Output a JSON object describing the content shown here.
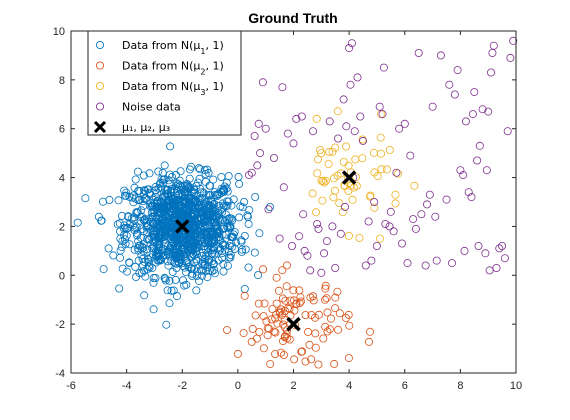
{
  "chart_data": {
    "type": "scatter",
    "title": "Ground Truth",
    "xlabel": "",
    "ylabel": "",
    "xlim": [
      -6,
      10
    ],
    "ylim": [
      -4,
      10
    ],
    "xticks": [
      "-6",
      "-4",
      "-2",
      "0",
      "2",
      "4",
      "6",
      "8",
      "10"
    ],
    "yticks": [
      "-4",
      "-2",
      "0",
      "2",
      "4",
      "6",
      "8",
      "10"
    ],
    "grid": false,
    "legend_position": "top-left",
    "legend": [
      {
        "text": "Data from N(μ",
        "sub": "1",
        "tail": ", 1)",
        "color": "#0072bd",
        "marker": "circle"
      },
      {
        "text": "Data from N(μ",
        "sub": "2",
        "tail": ", 1)",
        "color": "#d95319",
        "marker": "circle"
      },
      {
        "text": "Data from N(μ",
        "sub": "3",
        "tail": ", 1)",
        "color": "#edb120",
        "marker": "circle"
      },
      {
        "text": "Noise data",
        "sub": "",
        "tail": "",
        "color": "#7e2f8e",
        "marker": "circle"
      },
      {
        "text": "μ₁, μ₂, μ₃",
        "sub": "",
        "tail": "",
        "color": "#000000",
        "marker": "x"
      }
    ],
    "series": [
      {
        "name": "Data from N(μ1, 1)",
        "color": "#0072bd",
        "center": [
          -2,
          2
        ],
        "n": 1100
      },
      {
        "name": "Data from N(μ2, 1)",
        "color": "#d95319",
        "center": [
          2,
          -2
        ],
        "n": 110
      },
      {
        "name": "Data from N(μ3, 1)",
        "color": "#edb120",
        "center": [
          4,
          4
        ],
        "n": 60
      },
      {
        "name": "Noise data",
        "color": "#7e2f8e",
        "x": [
          4.0,
          4.1,
          4.3,
          3.8,
          3.6,
          4.4,
          5.1,
          5.2,
          3.3,
          2.0,
          2.7,
          2.3,
          2.1,
          3.9,
          4.2,
          4.5,
          5.8,
          6.0,
          5.7,
          6.2,
          6.5,
          7.0,
          7.8,
          8.5,
          9.0,
          9.1,
          9.2,
          9.8,
          9.7,
          8.2,
          8.0,
          7.5,
          6.8,
          5.5,
          5.0,
          4.8,
          4.6,
          3.5,
          3.0,
          2.5,
          2.2,
          1.5,
          1.3,
          0.8,
          0.7,
          0.5,
          0.4,
          0.9,
          1.0,
          1.6,
          1.8,
          2.4,
          2.6,
          2.9,
          3.1,
          3.2,
          3.4,
          3.7,
          4.7,
          4.9,
          5.3,
          5.6,
          5.9,
          6.1,
          6.3,
          6.6,
          6.9,
          7.1,
          7.3,
          7.6,
          7.9,
          8.1,
          8.3,
          8.4,
          8.6,
          8.7,
          8.8,
          8.9,
          9.3,
          9.4,
          9.5,
          9.6,
          9.9,
          8.45,
          8.65,
          9.05,
          7.15,
          6.4,
          5.45,
          4.15,
          3.85,
          2.85,
          2.35,
          1.95,
          1.65,
          0.6,
          0.75,
          1.1,
          4.05,
          7.7,
          8.15,
          9.15,
          8.95,
          6.75,
          5.25
        ],
        "y": [
          9.3,
          9.5,
          8.1,
          7.2,
          5.6,
          6.5,
          6.9,
          6.6,
          6.3,
          5.4,
          5.9,
          6.5,
          6.4,
          6.1,
          5.9,
          5.5,
          6.0,
          6.2,
          4.2,
          4.9,
          9.1,
          6.9,
          7.4,
          7.5,
          6.7,
          8.3,
          9.4,
          8.9,
          5.9,
          6.3,
          4.3,
          3.1,
          2.9,
          2.6,
          1.2,
          0.6,
          0.4,
          0.3,
          0.1,
          0.8,
          1.6,
          1.5,
          4.8,
          5.0,
          4.5,
          4.2,
          4.1,
          7.9,
          6.0,
          7.7,
          5.8,
          1.0,
          0.2,
          1.9,
          0.9,
          1.4,
          2.0,
          1.7,
          2.2,
          3.0,
          2.1,
          1.8,
          1.3,
          0.5,
          2.3,
          2.5,
          3.3,
          2.4,
          9.0,
          7.8,
          8.4,
          4.1,
          3.4,
          3.2,
          4.7,
          5.3,
          6.8,
          0.9,
          0.3,
          1.1,
          1.2,
          0.7,
          9.6,
          6.6,
          1.2,
          0.2,
          0.6,
          1.9,
          2.0,
          4.0,
          2.8,
          2.1,
          2.5,
          1.2,
          3.6,
          5.7,
          6.2,
          2.7,
          7.8,
          0.5,
          1.0,
          9.1,
          4.3,
          0.4,
          8.5
        ]
      },
      {
        "name": "μ1, μ2, μ3",
        "color": "#000000",
        "marker": "x",
        "x": [
          -2,
          2,
          4
        ],
        "y": [
          2,
          -2,
          4
        ]
      }
    ]
  }
}
